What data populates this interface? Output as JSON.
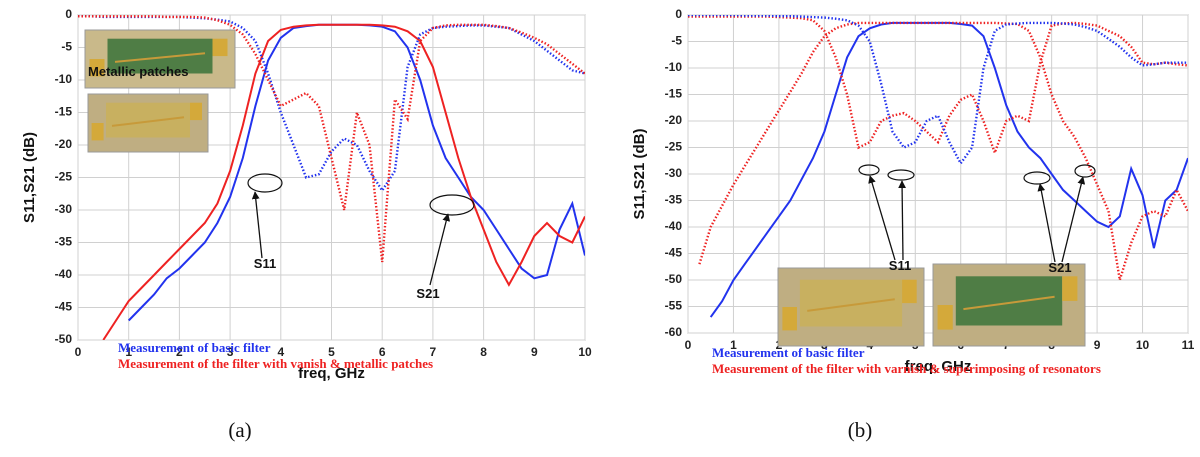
{
  "chart_data": [
    {
      "type": "line",
      "caption": "(a)",
      "x_label": "freq, GHz",
      "y_label": "S11,S21 (dB)",
      "xlim": [
        0,
        10
      ],
      "xticks": [
        0,
        1,
        2,
        3,
        4,
        5,
        6,
        7,
        8,
        9,
        10
      ],
      "ylim": [
        -50,
        0
      ],
      "yticks": [
        0,
        -5,
        -10,
        -15,
        -20,
        -25,
        -30,
        -35,
        -40,
        -45,
        -50
      ],
      "grid": true,
      "annotations": [
        "Metallic patches",
        "S11",
        "S21"
      ],
      "x": [
        0,
        0.25,
        0.5,
        0.75,
        1,
        1.25,
        1.5,
        1.75,
        2,
        2.25,
        2.5,
        2.75,
        3,
        3.25,
        3.5,
        3.75,
        4,
        4.25,
        4.5,
        4.75,
        5,
        5.25,
        5.5,
        5.75,
        6,
        6.25,
        6.5,
        6.75,
        7,
        7.25,
        7.5,
        7.75,
        8,
        8.25,
        8.5,
        8.75,
        9,
        9.25,
        9.5,
        9.75,
        10
      ],
      "series": [
        {
          "name": "Measurement of basic filter",
          "color": "#2233ee",
          "dash": false,
          "values": [
            null,
            null,
            null,
            null,
            -47,
            -45,
            -43,
            -40.5,
            -39,
            -37,
            -35,
            -32,
            -28,
            -22,
            -14,
            -7,
            -3.5,
            -2,
            -1.7,
            -1.5,
            -1.5,
            -1.5,
            -1.5,
            -1.6,
            -1.8,
            -2.5,
            -5,
            -10,
            -17,
            -22,
            -25,
            -28,
            -30,
            -33,
            -36,
            -39,
            -40.5,
            -40,
            -33,
            -29,
            -37
          ]
        },
        {
          "name": "Measurement of the filter with vanish & metallic patches",
          "color": "#ee2222",
          "dash": false,
          "values": [
            null,
            null,
            -50,
            -47,
            -44,
            -42,
            -40,
            -38,
            -36,
            -34,
            -32,
            -29,
            -24,
            -17,
            -9,
            -4,
            -2.3,
            -1.8,
            -1.6,
            -1.5,
            -1.5,
            -1.5,
            -1.5,
            -1.5,
            -1.6,
            -1.8,
            -2.5,
            -4,
            -8,
            -15,
            -22,
            -28,
            -33,
            -38,
            -41.5,
            -38,
            -34,
            -32,
            -34,
            -35,
            -31
          ]
        },
        {
          "color": "#2233ee",
          "dash": true,
          "values": [
            0,
            -0.2,
            -0.3,
            -0.3,
            -0.3,
            -0.3,
            -0.3,
            -0.3,
            -0.3,
            -0.4,
            -0.5,
            -0.7,
            -1,
            -2,
            -4,
            -9,
            -15,
            -20,
            -25,
            -24.5,
            -21,
            -19,
            -20,
            -24,
            -27,
            -24,
            -8,
            -3,
            -2,
            -1.8,
            -1.7,
            -1.6,
            -1.6,
            -1.8,
            -2,
            -3,
            -4,
            -5.5,
            -7,
            -8.5,
            -9
          ]
        },
        {
          "color": "#ee2222",
          "dash": true,
          "values": [
            -0.2,
            -0.2,
            -0.2,
            -0.2,
            -0.2,
            -0.2,
            -0.2,
            -0.3,
            -0.3,
            -0.3,
            -0.4,
            -0.8,
            -1.5,
            -3,
            -6,
            -10,
            -14,
            -13,
            -12,
            -14,
            -22,
            -30,
            -15,
            -20,
            -38,
            -13,
            -16,
            -4,
            -2,
            -1.6,
            -1.5,
            -1.5,
            -1.5,
            -1.7,
            -2,
            -2.7,
            -3.5,
            -4.5,
            -6,
            -7.5,
            -9
          ]
        }
      ]
    },
    {
      "type": "line",
      "caption": "(b)",
      "x_label": "freq, GHz",
      "y_label": "S11,S21 (dB)",
      "xlim": [
        0,
        11
      ],
      "xticks": [
        0,
        1,
        2,
        3,
        4,
        5,
        6,
        7,
        8,
        9,
        10,
        11
      ],
      "ylim": [
        -60,
        0
      ],
      "yticks": [
        0,
        -5,
        -10,
        -15,
        -20,
        -25,
        -30,
        -35,
        -40,
        -45,
        -50,
        -55,
        -60
      ],
      "grid": true,
      "annotations": [
        "S11",
        "S21"
      ],
      "x": [
        0,
        0.25,
        0.5,
        0.75,
        1,
        1.25,
        1.5,
        1.75,
        2,
        2.25,
        2.5,
        2.75,
        3,
        3.25,
        3.5,
        3.75,
        4,
        4.25,
        4.5,
        4.75,
        5,
        5.25,
        5.5,
        5.75,
        6,
        6.25,
        6.5,
        6.75,
        7,
        7.25,
        7.5,
        7.75,
        8,
        8.25,
        8.5,
        8.75,
        9,
        9.25,
        9.5,
        9.75,
        10,
        10.25,
        10.5,
        10.75,
        11
      ],
      "series": [
        {
          "name": "Measurement of basic filter",
          "color": "#2233ee",
          "dash": false,
          "values": [
            null,
            null,
            -57,
            -54,
            -50,
            -47,
            -44,
            -41,
            -38,
            -35,
            -31,
            -27,
            -22,
            -15,
            -8,
            -4,
            -2.5,
            -1.8,
            -1.5,
            -1.5,
            -1.5,
            -1.5,
            -1.5,
            -1.5,
            -1.7,
            -2,
            -4,
            -10,
            -17,
            -22,
            -25,
            -27,
            -30,
            -33,
            -35,
            -37,
            -39,
            -40,
            -38,
            -29,
            -34,
            -44,
            -35,
            -33,
            -27
          ]
        },
        {
          "name": "Measurement of the filter with varnish & superimposing of resonators",
          "color": "#ee2222",
          "dash": true,
          "values": [
            null,
            -47,
            -40,
            -36,
            -32,
            -28.5,
            -25,
            -21.5,
            -18,
            -14.5,
            -11,
            -7,
            -4,
            -2.5,
            -1.8,
            -1.5,
            -1.5,
            -1.5,
            -1.5,
            -1.5,
            -1.5,
            -1.5,
            -1.5,
            -1.5,
            -1.5,
            -1.5,
            -1.5,
            -1.5,
            -1.6,
            -1.7,
            -3,
            -8,
            -15,
            -20,
            -23,
            -27,
            -32,
            -37,
            -50,
            -43,
            -38,
            -37,
            -38,
            -33,
            -37
          ]
        },
        {
          "color": "#ee2222",
          "dash": true,
          "values": [
            -0.3,
            -0.3,
            -0.3,
            -0.3,
            -0.3,
            -0.3,
            -0.3,
            -0.3,
            -0.4,
            -0.5,
            -0.6,
            -1,
            -3,
            -8,
            -15,
            -25,
            -24,
            -20,
            -19,
            -18.5,
            -20,
            -22,
            -24,
            -19,
            -16,
            -15,
            -20,
            -26,
            -20,
            -19,
            -20,
            -9,
            -2,
            -1.6,
            -1.5,
            -1.7,
            -2,
            -3,
            -4,
            -6,
            -9,
            -9.3,
            -9,
            -9.3,
            -9.5
          ]
        },
        {
          "color": "#2233ee",
          "dash": true,
          "values": [
            0,
            0,
            0,
            0,
            0,
            -0.1,
            -0.1,
            -0.1,
            -0.2,
            -0.2,
            -0.3,
            -0.4,
            -0.5,
            -0.7,
            -1,
            -2,
            -5,
            -13,
            -22,
            -25,
            -24,
            -20,
            -19,
            -24,
            -28,
            -25,
            -10,
            -3,
            -1.8,
            -1.6,
            -1.5,
            -1.5,
            -1.5,
            -1.6,
            -1.8,
            -2.3,
            -3,
            -4.5,
            -6,
            -8,
            -9.5,
            -9.3,
            -9,
            -9,
            -9
          ]
        }
      ]
    }
  ]
}
